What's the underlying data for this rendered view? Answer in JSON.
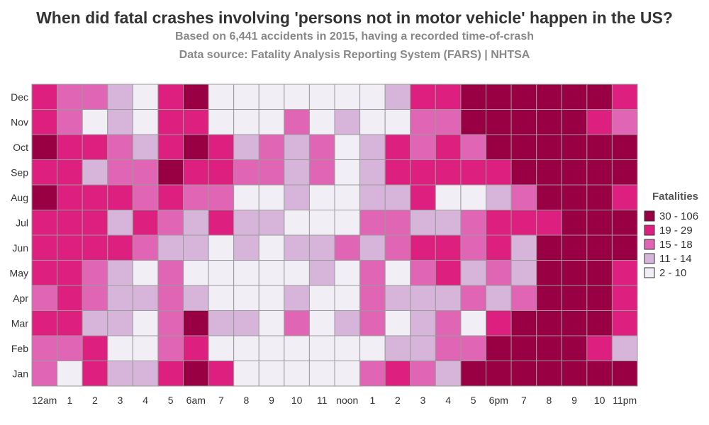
{
  "header": {
    "title": "When did fatal crashes involving 'persons not in motor vehicle' happen in the US?",
    "subtitle": "Based on 6,441 accidents in 2015, having a recorded time-of-crash",
    "source": "Data source: Fatality Analysis Reporting System (FARS) | NHTSA"
  },
  "chart_data": {
    "type": "heatmap",
    "x_labels": [
      "12am",
      "1",
      "2",
      "3",
      "4",
      "5",
      "6am",
      "7",
      "8",
      "9",
      "10",
      "11",
      "noon",
      "1",
      "2",
      "3",
      "4",
      "5",
      "6pm",
      "7",
      "8",
      "9",
      "10",
      "11pm"
    ],
    "y_labels": [
      "Jan",
      "Feb",
      "Mar",
      "Apr",
      "May",
      "Jun",
      "Jul",
      "Aug",
      "Sep",
      "Oct",
      "Nov",
      "Dec"
    ],
    "legend": {
      "title": "Fatalities",
      "bins": [
        {
          "label": "30 - 106",
          "color": "#990044"
        },
        {
          "label": "19 - 29",
          "color": "#dd1f7f"
        },
        {
          "label": "15 - 18",
          "color": "#e066b5"
        },
        {
          "label": "11 - 14",
          "color": "#d7b5da"
        },
        {
          "label": "2 - 10",
          "color": "#f1eef6"
        }
      ]
    },
    "cell_bins_legend_index": {
      "Jan": [
        2,
        4,
        1,
        3,
        3,
        1,
        0,
        1,
        4,
        4,
        4,
        4,
        4,
        2,
        1,
        2,
        3,
        0,
        0,
        0,
        0,
        0,
        0,
        0
      ],
      "Feb": [
        2,
        2,
        1,
        4,
        4,
        2,
        1,
        4,
        4,
        4,
        4,
        4,
        4,
        4,
        3,
        3,
        2,
        2,
        0,
        0,
        0,
        0,
        1,
        3
      ],
      "Mar": [
        1,
        1,
        3,
        3,
        4,
        2,
        0,
        3,
        3,
        4,
        2,
        4,
        3,
        2,
        4,
        3,
        2,
        4,
        1,
        0,
        0,
        0,
        0,
        1
      ],
      "Apr": [
        2,
        1,
        2,
        3,
        3,
        2,
        3,
        4,
        4,
        4,
        3,
        4,
        4,
        2,
        3,
        3,
        3,
        2,
        3,
        2,
        0,
        0,
        0,
        1
      ],
      "May": [
        1,
        1,
        2,
        3,
        4,
        2,
        4,
        4,
        4,
        4,
        4,
        3,
        4,
        2,
        4,
        2,
        1,
        3,
        2,
        3,
        0,
        0,
        0,
        1
      ],
      "Jun": [
        1,
        1,
        1,
        1,
        2,
        3,
        3,
        4,
        3,
        4,
        3,
        3,
        2,
        3,
        2,
        1,
        1,
        2,
        1,
        3,
        0,
        0,
        0,
        0
      ],
      "Jul": [
        1,
        1,
        1,
        3,
        1,
        2,
        3,
        1,
        3,
        3,
        4,
        4,
        4,
        2,
        2,
        3,
        3,
        2,
        1,
        1,
        1,
        0,
        0,
        0
      ],
      "Aug": [
        0,
        1,
        1,
        1,
        2,
        1,
        2,
        2,
        4,
        4,
        3,
        4,
        4,
        3,
        3,
        1,
        4,
        4,
        3,
        2,
        0,
        0,
        0,
        1
      ],
      "Sep": [
        1,
        1,
        3,
        2,
        2,
        0,
        1,
        1,
        2,
        2,
        3,
        2,
        4,
        3,
        1,
        1,
        1,
        1,
        1,
        0,
        0,
        0,
        0,
        0
      ],
      "Oct": [
        0,
        1,
        1,
        2,
        3,
        1,
        0,
        1,
        3,
        2,
        3,
        2,
        4,
        3,
        1,
        2,
        1,
        2,
        0,
        0,
        0,
        0,
        0,
        0
      ],
      "Nov": [
        1,
        2,
        4,
        3,
        4,
        1,
        1,
        4,
        4,
        4,
        2,
        4,
        3,
        4,
        4,
        2,
        2,
        0,
        0,
        0,
        0,
        0,
        1,
        2
      ],
      "Dec": [
        1,
        2,
        2,
        3,
        4,
        1,
        0,
        4,
        4,
        4,
        4,
        4,
        4,
        4,
        3,
        1,
        1,
        0,
        0,
        0,
        0,
        0,
        0,
        1
      ]
    }
  }
}
